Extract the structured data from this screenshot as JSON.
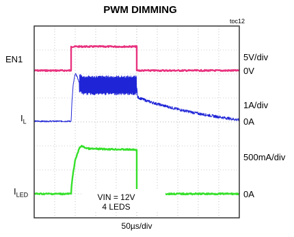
{
  "title": "PWM DIMMING",
  "figure_id": "toc12",
  "left_labels": {
    "en1": "EN1",
    "il_main": "I",
    "il_sub": "L",
    "iled_main": "I",
    "iled_sub": "LED"
  },
  "right_labels": {
    "en1_scale": "5V/div",
    "en1_zero": "0V",
    "il_scale": "1A/div",
    "il_zero": "0A",
    "iled_scale": "500mA/div",
    "iled_zero": "0A"
  },
  "annotation": {
    "line1": "VIN = 12V",
    "line2": "4 LEDS"
  },
  "xlabel": "50µs/div",
  "colors": {
    "en1": "#e8337f",
    "il": "#1f25d6",
    "iled": "#35e02a",
    "grid": "#999999",
    "frame": "#333333"
  },
  "chart_data": {
    "type": "line",
    "title": "PWM DIMMING",
    "xlabel": "50µs/div",
    "x_unit": "µs",
    "x_per_div": 50,
    "x_divs": 10,
    "y_divs": 8,
    "grid": true,
    "series": [
      {
        "name": "EN1",
        "unit": "V",
        "per_div": 5,
        "x": [
          0,
          90,
          90,
          250,
          250,
          500
        ],
        "y": [
          0,
          0,
          5,
          5,
          0,
          0
        ]
      },
      {
        "name": "IL",
        "unit": "A",
        "per_div": 1,
        "x": [
          0,
          90,
          92,
          95,
          100,
          105,
          110,
          120,
          250,
          252,
          275,
          300,
          350,
          400,
          450,
          500
        ],
        "y": [
          0,
          0,
          0.8,
          1.5,
          2.0,
          1.85,
          1.6,
          1.5,
          1.5,
          1.0,
          0.85,
          0.72,
          0.5,
          0.32,
          0.18,
          0.05
        ],
        "ripple_pp": {
          "from": 110,
          "to": 250,
          "value": 0.8
        }
      },
      {
        "name": "ILED",
        "unit": "A",
        "per_div": 0.5,
        "x": [
          0,
          90,
          91,
          95,
          100,
          110,
          115,
          125,
          135,
          250,
          250,
          500
        ],
        "y": [
          0,
          0,
          0.15,
          0.45,
          0.7,
          0.95,
          1.0,
          0.96,
          0.94,
          0.92,
          0,
          0
        ]
      }
    ]
  }
}
